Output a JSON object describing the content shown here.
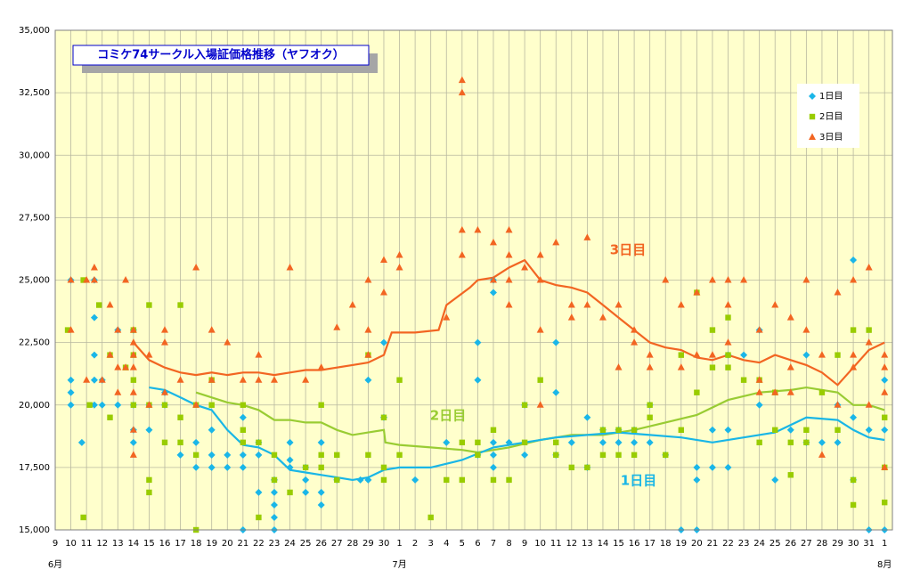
{
  "chart_data": {
    "type": "scatter",
    "title": "コミケ74サークル入場証価格推移（ヤフオク）",
    "xlim": [
      0,
      53.5
    ],
    "ylim": [
      15000,
      35000
    ],
    "yticks": [
      {
        "value": 15000,
        "label": "15,000"
      },
      {
        "value": 17500,
        "label": "17,500"
      },
      {
        "value": 20000,
        "label": "20,000"
      },
      {
        "value": 22500,
        "label": "22,500"
      },
      {
        "value": 25000,
        "label": "25,000"
      },
      {
        "value": 27500,
        "label": "27,500"
      },
      {
        "value": 30000,
        "label": "30,000"
      },
      {
        "value": 32500,
        "label": "32,500"
      },
      {
        "value": 35000,
        "label": "35,000"
      }
    ],
    "xticks": [
      {
        "value": 0,
        "label": "9"
      },
      {
        "value": 1,
        "label": "10"
      },
      {
        "value": 2,
        "label": "11"
      },
      {
        "value": 3,
        "label": "12"
      },
      {
        "value": 4,
        "label": "13"
      },
      {
        "value": 5,
        "label": "14"
      },
      {
        "value": 6,
        "label": "15"
      },
      {
        "value": 7,
        "label": "16"
      },
      {
        "value": 8,
        "label": "17"
      },
      {
        "value": 9,
        "label": "18"
      },
      {
        "value": 10,
        "label": "19"
      },
      {
        "value": 11,
        "label": "20"
      },
      {
        "value": 12,
        "label": "21"
      },
      {
        "value": 13,
        "label": "22"
      },
      {
        "value": 14,
        "label": "23"
      },
      {
        "value": 15,
        "label": "24"
      },
      {
        "value": 16,
        "label": "25"
      },
      {
        "value": 17,
        "label": "26"
      },
      {
        "value": 18,
        "label": "27"
      },
      {
        "value": 19,
        "label": "28"
      },
      {
        "value": 20,
        "label": "29"
      },
      {
        "value": 21,
        "label": "30"
      },
      {
        "value": 22,
        "label": "1"
      },
      {
        "value": 23,
        "label": "2"
      },
      {
        "value": 24,
        "label": "3"
      },
      {
        "value": 25,
        "label": "4"
      },
      {
        "value": 26,
        "label": "5"
      },
      {
        "value": 27,
        "label": "6"
      },
      {
        "value": 28,
        "label": "7"
      },
      {
        "value": 29,
        "label": "8"
      },
      {
        "value": 30,
        "label": "9"
      },
      {
        "value": 31,
        "label": "10"
      },
      {
        "value": 32,
        "label": "11"
      },
      {
        "value": 33,
        "label": "12"
      },
      {
        "value": 34,
        "label": "13"
      },
      {
        "value": 35,
        "label": "14"
      },
      {
        "value": 36,
        "label": "15"
      },
      {
        "value": 37,
        "label": "16"
      },
      {
        "value": 38,
        "label": "17"
      },
      {
        "value": 39,
        "label": "18"
      },
      {
        "value": 40,
        "label": "19"
      },
      {
        "value": 41,
        "label": "20"
      },
      {
        "value": 42,
        "label": "21"
      },
      {
        "value": 43,
        "label": "22"
      },
      {
        "value": 44,
        "label": "23"
      },
      {
        "value": 45,
        "label": "24"
      },
      {
        "value": 46,
        "label": "25"
      },
      {
        "value": 47,
        "label": "26"
      },
      {
        "value": 48,
        "label": "27"
      },
      {
        "value": 49,
        "label": "28"
      },
      {
        "value": 50,
        "label": "29"
      },
      {
        "value": 51,
        "label": "30"
      },
      {
        "value": 52,
        "label": "31"
      },
      {
        "value": 53,
        "label": "1"
      }
    ],
    "month_ticks": [
      {
        "value": 0,
        "label": "6月"
      },
      {
        "value": 22,
        "label": "7月"
      },
      {
        "value": 53,
        "label": "8月"
      }
    ],
    "grid": true,
    "legend": "upper right",
    "series": [
      {
        "name": "1日目",
        "color": "#1ab6e8",
        "marker": "diamond",
        "x": [
          1,
          1,
          1,
          1,
          1.7,
          2.5,
          2.5,
          2.5,
          2.5,
          2.5,
          3,
          3,
          4,
          4,
          5,
          5,
          5,
          5,
          6,
          6,
          7,
          7,
          8,
          9,
          9,
          10,
          10,
          10,
          11,
          11,
          12,
          12,
          12,
          12,
          13,
          13,
          13,
          14,
          14,
          14,
          14,
          14,
          15,
          15,
          15,
          16,
          16,
          16,
          17,
          17,
          17,
          18,
          19.5,
          20,
          20,
          21,
          21,
          23,
          25,
          27,
          27,
          27,
          28,
          28,
          28,
          28,
          28,
          29,
          30,
          30,
          32,
          32,
          32,
          33,
          34,
          34,
          35,
          35,
          36,
          36,
          37,
          37,
          38,
          38,
          39,
          40,
          41,
          41,
          41,
          42,
          42,
          43,
          43,
          43,
          44,
          45,
          45,
          46,
          47,
          48,
          48,
          49,
          50,
          50,
          51,
          51,
          51,
          52,
          52,
          53,
          53,
          53
        ],
        "values": [
          21000,
          20500,
          20000,
          25000,
          18500,
          22000,
          21000,
          20000,
          23500,
          25000,
          21000,
          20000,
          23000,
          20000,
          19000,
          18500,
          20000,
          23000,
          20000,
          19000,
          20500,
          20000,
          18000,
          18500,
          17500,
          19000,
          18000,
          17500,
          18000,
          17500,
          19500,
          18000,
          17500,
          15000,
          18500,
          18000,
          16500,
          17000,
          16500,
          15500,
          16000,
          15000,
          18500,
          17500,
          17800,
          17500,
          17000,
          16500,
          16000,
          16500,
          18500,
          17000,
          17000,
          17000,
          21000,
          19500,
          22500,
          17000,
          18500,
          22500,
          21000,
          18000,
          18500,
          18000,
          17500,
          24500,
          25000,
          18500,
          18000,
          20000,
          22500,
          20500,
          18000,
          18500,
          19500,
          17500,
          19000,
          18500,
          18500,
          19000,
          19000,
          18500,
          20000,
          18500,
          18000,
          15000,
          15000,
          17500,
          17000,
          19000,
          17500,
          19000,
          17500,
          22000,
          22000,
          23000,
          20000,
          17000,
          19000,
          22000,
          18500,
          18500,
          18500,
          20000,
          25800,
          17000,
          19500,
          15000,
          19000,
          21000,
          19000,
          15000
        ]
      },
      {
        "name": "2日目",
        "color": "#99cc00",
        "marker": "square",
        "x": [
          0.8,
          1.8,
          1.8,
          2.2,
          2.8,
          3.5,
          3.5,
          4.5,
          5,
          5,
          5,
          5,
          6,
          6,
          6,
          6,
          7,
          7,
          8,
          8,
          8,
          9,
          9,
          9,
          10,
          10,
          12,
          12,
          12,
          13,
          13,
          14,
          14,
          15,
          16,
          17,
          17,
          17,
          18,
          18,
          20,
          20,
          21,
          21,
          21,
          22,
          22,
          24,
          25,
          26,
          26,
          27,
          27,
          28,
          28,
          29,
          30,
          30,
          31,
          32,
          32,
          33,
          34,
          35,
          35,
          36,
          36,
          37,
          37,
          38,
          38,
          39,
          40,
          40,
          41,
          41,
          42,
          42,
          43,
          43,
          43,
          44,
          45,
          45,
          46,
          46,
          47,
          47,
          48,
          48,
          49,
          50,
          50,
          51,
          51,
          51,
          52,
          53,
          53,
          53
        ],
        "values": [
          23000,
          15500,
          25000,
          20000,
          24000,
          19500,
          22000,
          21500,
          20000,
          21000,
          22000,
          23000,
          17000,
          16500,
          24000,
          20000,
          18500,
          20000,
          18500,
          19500,
          24000,
          20000,
          15000,
          18000,
          21000,
          20000,
          19000,
          18500,
          20000,
          18500,
          15500,
          18000,
          17000,
          16500,
          17500,
          17500,
          18000,
          20000,
          18000,
          17000,
          22000,
          18000,
          19500,
          17500,
          17000,
          18000,
          21000,
          15500,
          17000,
          17000,
          18500,
          18500,
          18000,
          17000,
          19000,
          17000,
          18500,
          20000,
          21000,
          18500,
          18000,
          17500,
          17500,
          18000,
          19000,
          18000,
          19000,
          19000,
          18000,
          19500,
          20000,
          18000,
          22000,
          19000,
          24500,
          20500,
          23000,
          21500,
          21500,
          23500,
          22000,
          21000,
          21000,
          18500,
          19000,
          20500,
          17200,
          18500,
          19000,
          18500,
          20500,
          22000,
          19000,
          16000,
          23000,
          17000,
          23000,
          16100,
          17500,
          19500
        ]
      },
      {
        "name": "3日目",
        "color": "#f26522",
        "marker": "triangle",
        "x": [
          1,
          1,
          2,
          2,
          2.5,
          2.5,
          3,
          3.5,
          3.5,
          4,
          4,
          4,
          4.5,
          4.5,
          5,
          5,
          5,
          5,
          5,
          5,
          5,
          6,
          6,
          7,
          7,
          7,
          8,
          9,
          9,
          10,
          10,
          11,
          12,
          13,
          13,
          14,
          15,
          16,
          17,
          18,
          19,
          20,
          20,
          20,
          21,
          21,
          22,
          22,
          25,
          26,
          26,
          26,
          26,
          27,
          28,
          28,
          29,
          29,
          29,
          29,
          30,
          31,
          31,
          31,
          31,
          32,
          33,
          33,
          34,
          34,
          35,
          36,
          36,
          37,
          37,
          38,
          38,
          39,
          40,
          40,
          41,
          41,
          42,
          42,
          43,
          43,
          43,
          44,
          45,
          45,
          45,
          46,
          46,
          47,
          47,
          47,
          48,
          48,
          49,
          49,
          50,
          50,
          51,
          51,
          51,
          52,
          52,
          52,
          53,
          53,
          53,
          53
        ],
        "values": [
          25000,
          23000,
          25000,
          21000,
          25500,
          25000,
          21000,
          22000,
          24000,
          23000,
          21500,
          20500,
          25000,
          21500,
          22500,
          22000,
          21500,
          20500,
          18000,
          19000,
          23000,
          22000,
          20000,
          22500,
          23000,
          20500,
          21000,
          25500,
          20000,
          23000,
          21000,
          22500,
          21000,
          22000,
          21000,
          21000,
          25500,
          21000,
          21500,
          23100,
          24000,
          25000,
          22000,
          23000,
          25800,
          24500,
          26000,
          25500,
          23500,
          33000,
          32500,
          27000,
          26000,
          27000,
          26500,
          25000,
          27000,
          25000,
          26000,
          24000,
          25500,
          26000,
          25000,
          23000,
          20000,
          26500,
          24000,
          23500,
          26700,
          24000,
          23500,
          21500,
          24000,
          23000,
          22500,
          21500,
          22000,
          25000,
          24000,
          21500,
          24500,
          22000,
          25000,
          22000,
          25000,
          22500,
          24000,
          25000,
          21000,
          20500,
          23000,
          20500,
          24000,
          23500,
          20500,
          21500,
          25000,
          23000,
          18000,
          22000,
          24500,
          20000,
          25000,
          22000,
          21500,
          25500,
          22500,
          20000,
          21500,
          20500,
          17500,
          22000
        ]
      }
    ],
    "lines": [
      {
        "name": "3日目",
        "color": "#f26522",
        "x": [
          5,
          6,
          7,
          8,
          9,
          10,
          11,
          12,
          13,
          14,
          15,
          16,
          17,
          18,
          19,
          20,
          21,
          21.5,
          23,
          24.5,
          25,
          26.5,
          27,
          28,
          29,
          30,
          31,
          32,
          33,
          34,
          35,
          36,
          37,
          38,
          39,
          40,
          41,
          42,
          43,
          44,
          45,
          46,
          47,
          48,
          49,
          50,
          51,
          52,
          53
        ],
        "values": [
          22500,
          21800,
          21500,
          21300,
          21200,
          21300,
          21200,
          21300,
          21300,
          21200,
          21300,
          21400,
          21400,
          21500,
          21600,
          21700,
          22000,
          22900,
          22900,
          23000,
          24000,
          24700,
          25000,
          25100,
          25500,
          25800,
          25000,
          24800,
          24700,
          24500,
          24000,
          23500,
          23000,
          22500,
          22300,
          22200,
          21900,
          21800,
          22000,
          21800,
          21700,
          22000,
          21800,
          21600,
          21300,
          20800,
          21500,
          22200,
          22500
        ]
      },
      {
        "name": "2日目",
        "color": "#99cc33",
        "x": [
          9,
          10,
          11,
          12,
          13,
          14,
          15,
          16,
          17,
          18,
          19,
          20,
          21,
          21.1,
          22,
          24,
          26,
          27,
          29,
          31,
          33,
          35,
          37,
          39,
          41,
          43,
          45,
          47,
          48,
          50,
          51,
          52,
          53
        ],
        "values": [
          20500,
          20300,
          20100,
          20000,
          19800,
          19400,
          19400,
          19300,
          19300,
          19000,
          18800,
          18900,
          19000,
          18500,
          18400,
          18300,
          18200,
          18100,
          18300,
          18600,
          18800,
          18800,
          19000,
          19300,
          19600,
          20200,
          20500,
          20600,
          20700,
          20500,
          20000,
          20000,
          19800
        ]
      },
      {
        "name": "1日目",
        "color": "#19b6e6",
        "x": [
          6,
          7,
          8,
          9,
          10,
          11,
          12,
          13,
          14,
          15,
          16,
          17,
          18,
          19,
          20,
          21,
          22,
          24,
          26,
          28,
          30,
          32,
          34,
          36,
          38,
          40,
          42,
          44,
          46,
          48,
          50,
          51,
          52,
          53
        ],
        "values": [
          20700,
          20600,
          20300,
          20000,
          19800,
          19000,
          18400,
          18300,
          18000,
          17400,
          17300,
          17200,
          17100,
          17000,
          17100,
          17400,
          17500,
          17500,
          17800,
          18300,
          18500,
          18700,
          18800,
          18900,
          18800,
          18700,
          18500,
          18700,
          18900,
          19500,
          19400,
          19000,
          18700,
          18600
        ]
      }
    ]
  }
}
